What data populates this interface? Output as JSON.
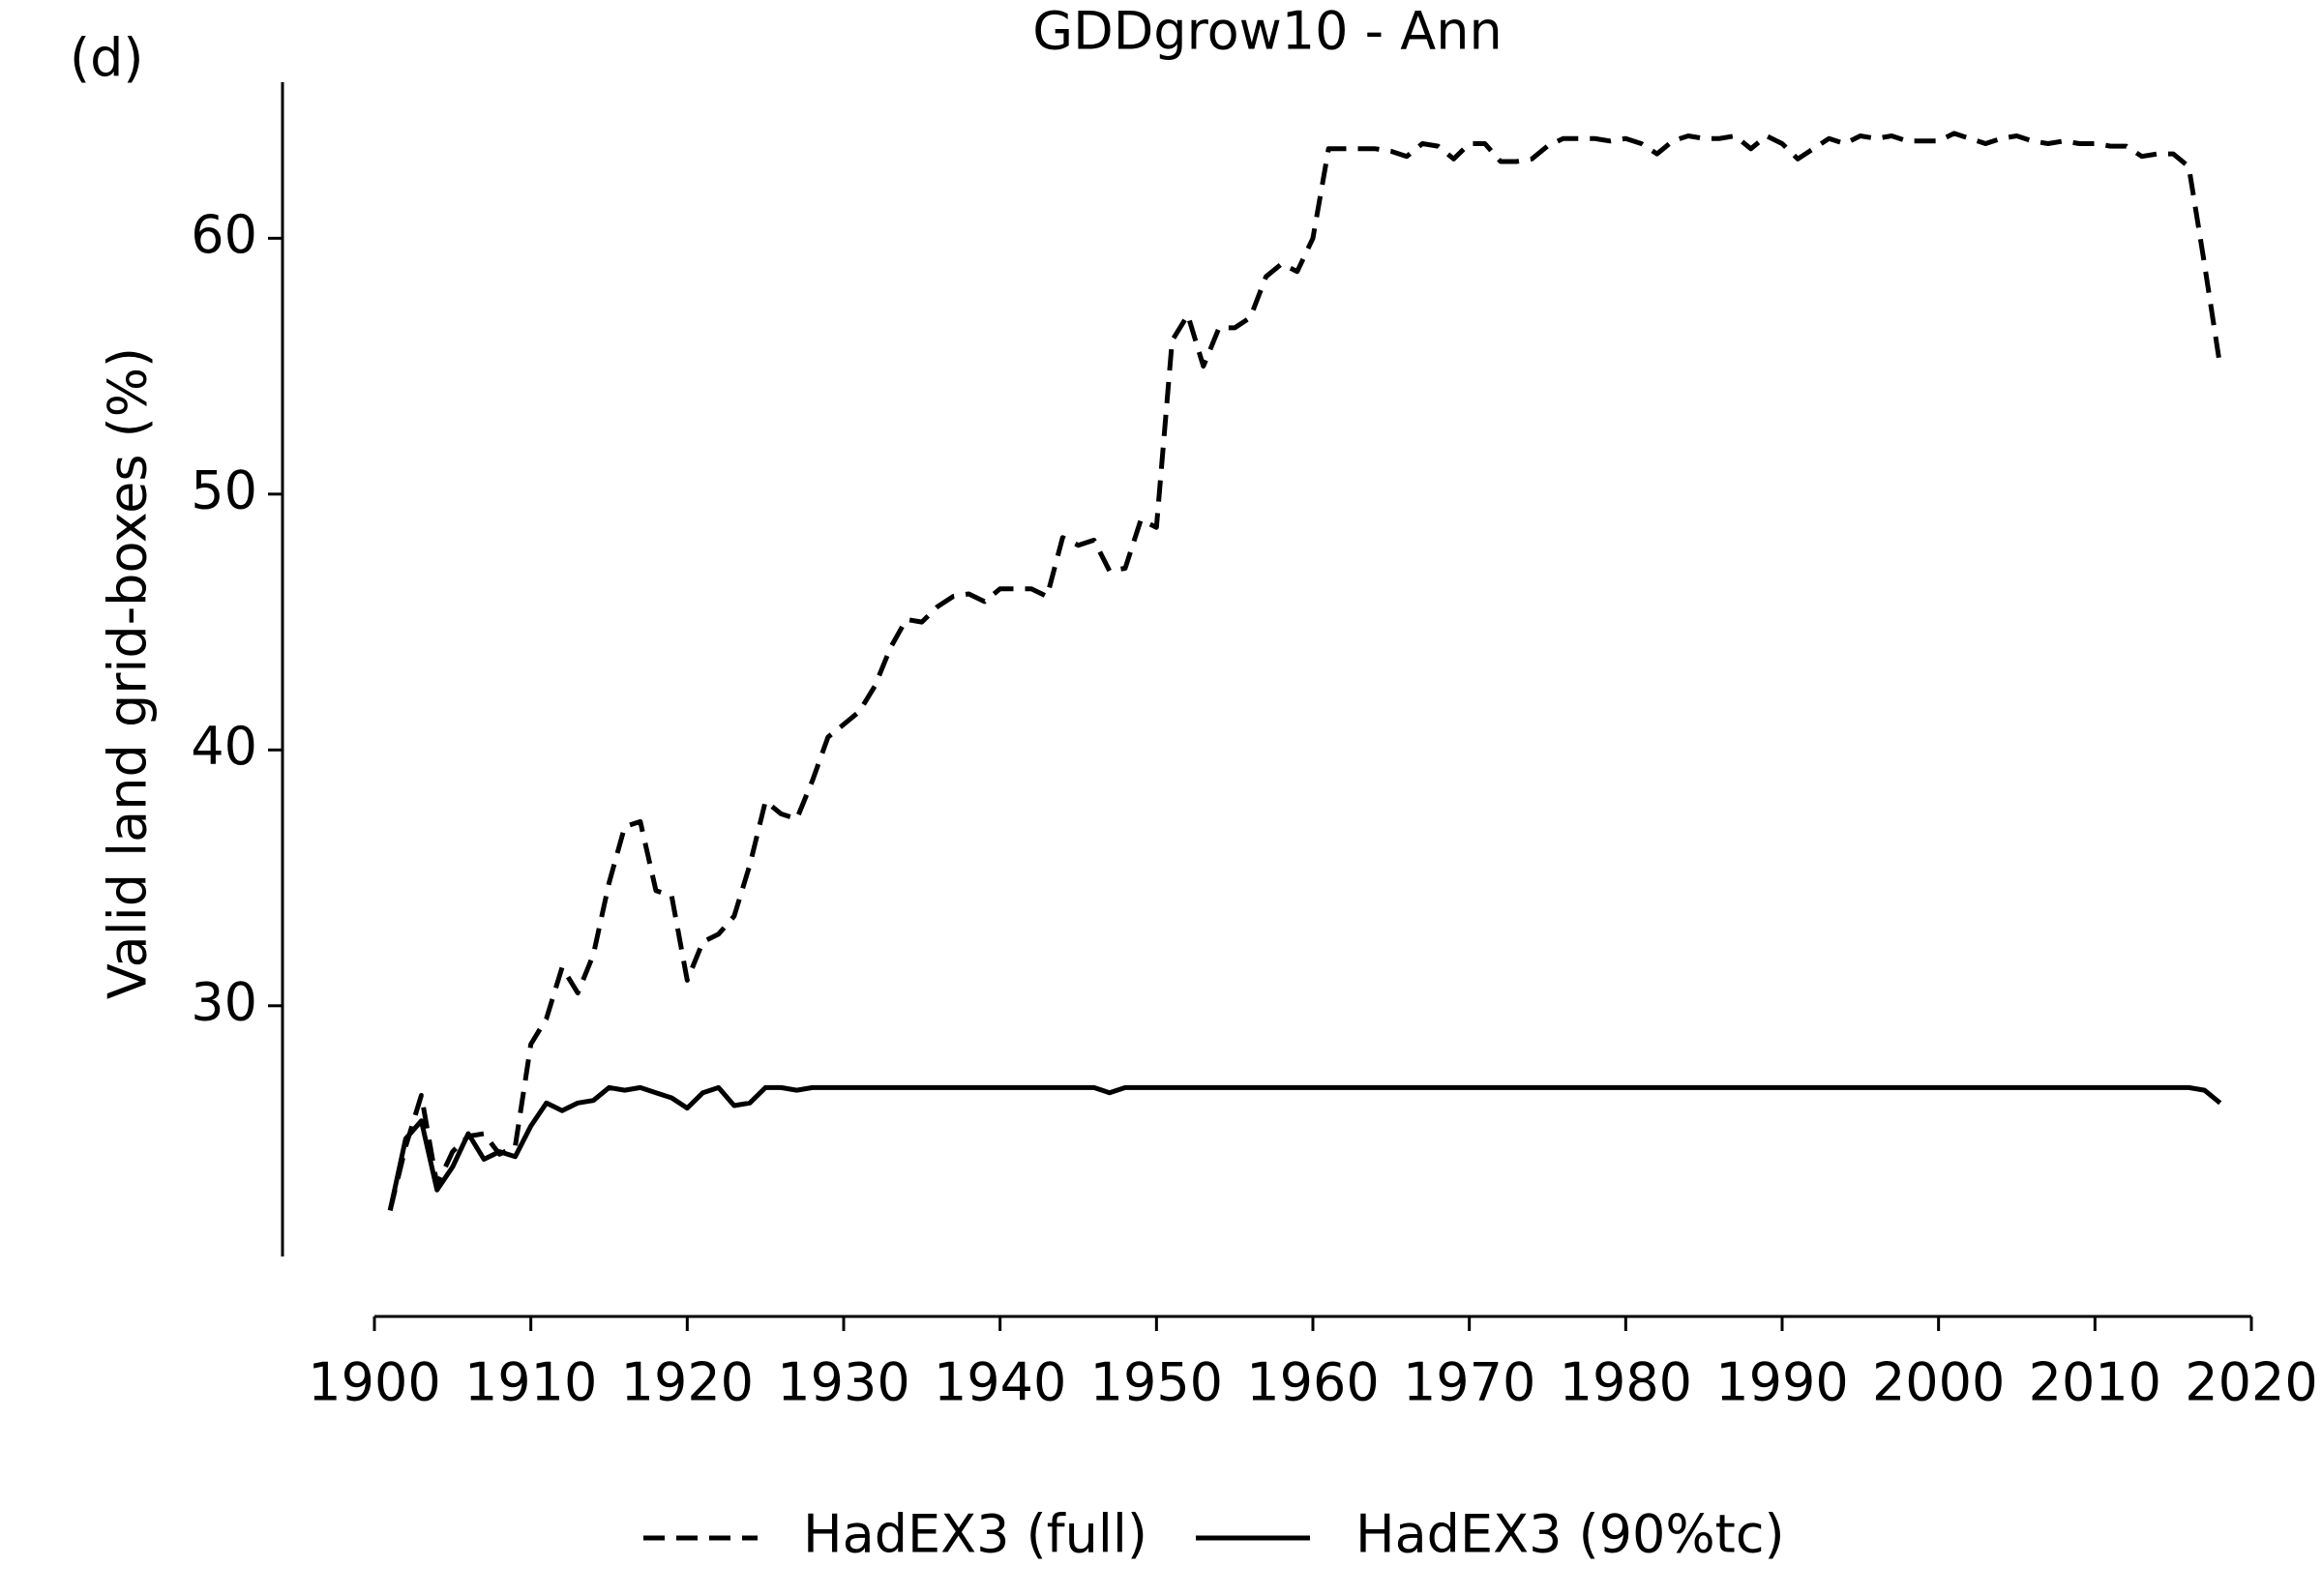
{
  "chart_data": {
    "type": "line",
    "title": "GDDgrow10 - Ann",
    "annotations": [
      "(d)"
    ],
    "y_label": "Valid land grid-boxes (%)",
    "x": [
      1901,
      1902,
      1903,
      1904,
      1905,
      1906,
      1907,
      1908,
      1909,
      1910,
      1911,
      1912,
      1913,
      1914,
      1915,
      1916,
      1917,
      1918,
      1919,
      1920,
      1921,
      1922,
      1923,
      1924,
      1925,
      1926,
      1927,
      1928,
      1929,
      1930,
      1931,
      1932,
      1933,
      1934,
      1935,
      1936,
      1937,
      1938,
      1939,
      1940,
      1941,
      1942,
      1943,
      1944,
      1945,
      1946,
      1947,
      1948,
      1949,
      1950,
      1951,
      1952,
      1953,
      1954,
      1955,
      1956,
      1957,
      1958,
      1959,
      1960,
      1961,
      1962,
      1963,
      1964,
      1965,
      1966,
      1967,
      1968,
      1969,
      1970,
      1971,
      1972,
      1973,
      1974,
      1975,
      1976,
      1977,
      1978,
      1979,
      1980,
      1981,
      1982,
      1983,
      1984,
      1985,
      1986,
      1987,
      1988,
      1989,
      1990,
      1991,
      1992,
      1993,
      1994,
      1995,
      1996,
      1997,
      1998,
      1999,
      2000,
      2001,
      2002,
      2003,
      2004,
      2005,
      2006,
      2007,
      2008,
      2009,
      2010,
      2011,
      2012,
      2013,
      2014,
      2015,
      2016,
      2017,
      2018
    ],
    "series": [
      {
        "name": "HadEX3 (full)",
        "color": "#000000",
        "linestyle": "dashed",
        "values": [
          22.0,
          24.5,
          26.5,
          23.0,
          24.3,
          24.9,
          25.0,
          24.2,
          24.5,
          28.5,
          29.5,
          31.5,
          30.5,
          32.0,
          34.8,
          37.0,
          37.2,
          34.5,
          34.3,
          31.0,
          32.5,
          32.8,
          33.5,
          35.5,
          38.0,
          37.5,
          37.3,
          38.8,
          40.5,
          41.0,
          41.5,
          42.5,
          44.0,
          45.1,
          45.0,
          45.6,
          46.0,
          46.1,
          45.8,
          46.3,
          46.3,
          46.3,
          46.0,
          48.3,
          48.0,
          48.2,
          47.0,
          47.1,
          49.0,
          48.7,
          56.0,
          57.0,
          55.0,
          56.5,
          56.5,
          56.9,
          58.5,
          59.0,
          58.7,
          60.0,
          63.5,
          63.5,
          63.5,
          63.5,
          63.4,
          63.2,
          63.7,
          63.6,
          63.1,
          63.7,
          63.7,
          63.0,
          63.0,
          63.1,
          63.6,
          63.9,
          63.9,
          63.9,
          63.8,
          63.9,
          63.7,
          63.3,
          63.8,
          64.0,
          63.9,
          63.9,
          64.0,
          63.5,
          64.0,
          63.7,
          63.1,
          63.5,
          63.9,
          63.7,
          64.0,
          63.9,
          64.0,
          63.8,
          63.8,
          63.8,
          64.1,
          63.9,
          63.7,
          63.9,
          64.0,
          63.8,
          63.7,
          63.8,
          63.7,
          63.7,
          63.6,
          63.6,
          63.2,
          63.3,
          63.3,
          62.8,
          59.0,
          55.0
        ]
      },
      {
        "name": "HadEX3 (90%tc)",
        "color": "#000000",
        "linestyle": "solid",
        "values": [
          22.0,
          24.8,
          25.5,
          22.8,
          23.7,
          25.0,
          24.0,
          24.3,
          24.1,
          25.3,
          26.2,
          25.9,
          26.2,
          26.3,
          26.8,
          26.7,
          26.8,
          26.6,
          26.4,
          26.0,
          26.6,
          26.8,
          26.1,
          26.2,
          26.8,
          26.8,
          26.7,
          26.8,
          26.8,
          26.8,
          26.8,
          26.8,
          26.8,
          26.8,
          26.8,
          26.8,
          26.8,
          26.8,
          26.8,
          26.8,
          26.8,
          26.8,
          26.8,
          26.8,
          26.8,
          26.8,
          26.6,
          26.8,
          26.8,
          26.8,
          26.8,
          26.8,
          26.8,
          26.8,
          26.8,
          26.8,
          26.8,
          26.8,
          26.8,
          26.8,
          26.8,
          26.8,
          26.8,
          26.8,
          26.8,
          26.8,
          26.8,
          26.8,
          26.8,
          26.8,
          26.8,
          26.8,
          26.8,
          26.8,
          26.8,
          26.8,
          26.8,
          26.8,
          26.8,
          26.8,
          26.8,
          26.8,
          26.8,
          26.8,
          26.8,
          26.8,
          26.8,
          26.8,
          26.8,
          26.8,
          26.8,
          26.8,
          26.8,
          26.8,
          26.8,
          26.8,
          26.8,
          26.8,
          26.8,
          26.8,
          26.8,
          26.8,
          26.8,
          26.8,
          26.8,
          26.8,
          26.8,
          26.8,
          26.8,
          26.8,
          26.8,
          26.8,
          26.8,
          26.8,
          26.8,
          26.8,
          26.7,
          26.2
        ]
      }
    ],
    "xlim": [
      1900,
      2020
    ],
    "xticks": [
      1900,
      1910,
      1920,
      1930,
      1940,
      1950,
      1960,
      1970,
      1980,
      1990,
      2000,
      2010,
      2020
    ],
    "ylim": [
      20.2,
      66.1
    ],
    "yticks": [
      30,
      40,
      50,
      60
    ],
    "grid": false,
    "legend": "bottom"
  }
}
